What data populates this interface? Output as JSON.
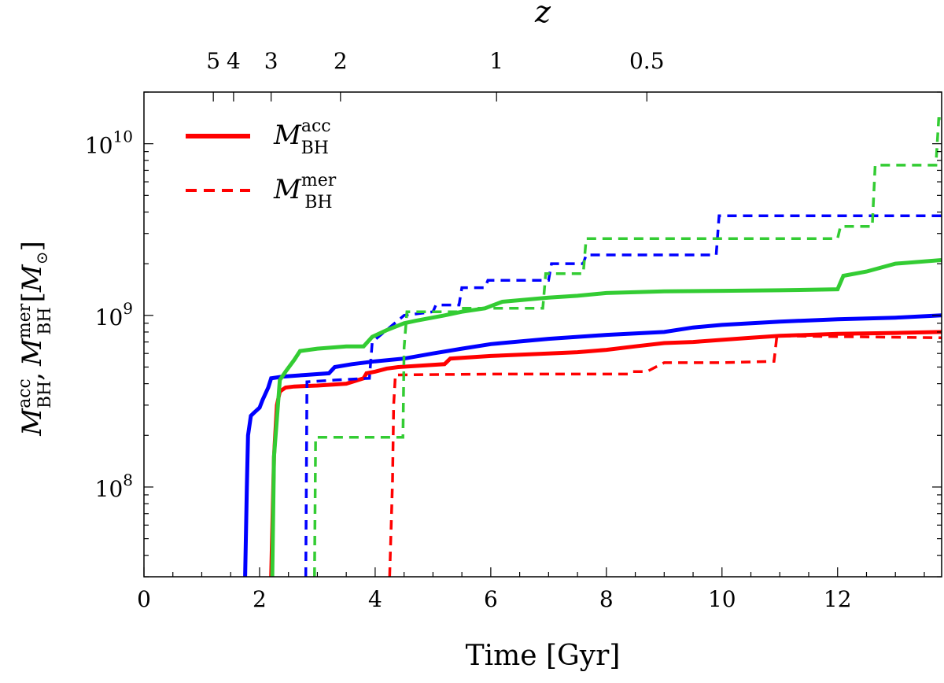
{
  "chart_data": {
    "type": "line",
    "title": "",
    "xlabel": "Time [Gyr]",
    "ylabel_parts": {
      "m": "M",
      "acc": "acc",
      "bh": "BH",
      "sep": ",",
      "mer": "mer",
      "unit_open": "[",
      "unit_close": "]"
    },
    "top_axis_label": "z",
    "xlim": [
      0,
      13.8
    ],
    "ylim": [
      30000000.0,
      20000000000.0
    ],
    "yscale": "log",
    "xticks": [
      0,
      2,
      4,
      6,
      8,
      10,
      12
    ],
    "xtick_labels": [
      "0",
      "2",
      "4",
      "6",
      "8",
      "10",
      "12"
    ],
    "yticks": [
      100000000.0,
      1000000000.0,
      10000000000.0
    ],
    "ytick_labels": [
      {
        "base": "10",
        "exp": "8"
      },
      {
        "base": "10",
        "exp": "9"
      },
      {
        "base": "10",
        "exp": "10"
      }
    ],
    "top_ticks": [
      {
        "t": 1.2,
        "label": "5"
      },
      {
        "t": 1.55,
        "label": "4"
      },
      {
        "t": 2.2,
        "label": "3"
      },
      {
        "t": 3.4,
        "label": "2"
      },
      {
        "t": 6.1,
        "label": "1"
      },
      {
        "t": 8.7,
        "label": "0.5"
      }
    ],
    "legend": {
      "position": "top-left",
      "entries": [
        {
          "label_m": "M",
          "sup": "acc",
          "sub": "BH",
          "color": "#ff0000",
          "style": "solid"
        },
        {
          "label_m": "M",
          "sup": "mer",
          "sub": "BH",
          "color": "#ff0000",
          "style": "dashed"
        }
      ]
    },
    "series": [
      {
        "name": "red-accreted",
        "color": "#ff0000",
        "style": "solid",
        "x": [
          2.2,
          2.25,
          2.3,
          2.35,
          2.45,
          2.6,
          3.0,
          3.5,
          3.8,
          3.85,
          4.0,
          4.2,
          4.4,
          4.8,
          5.2,
          5.3,
          6.0,
          7.0,
          7.5,
          8.0,
          8.5,
          9.0,
          9.5,
          10.0,
          10.5,
          11.0,
          12.0,
          13.0,
          13.8
        ],
        "y": [
          30000000.0,
          150000000.0,
          300000000.0,
          360000000.0,
          380000000.0,
          385000000.0,
          390000000.0,
          400000000.0,
          430000000.0,
          460000000.0,
          470000000.0,
          490000000.0,
          500000000.0,
          510000000.0,
          520000000.0,
          560000000.0,
          580000000.0,
          600000000.0,
          610000000.0,
          630000000.0,
          660000000.0,
          690000000.0,
          700000000.0,
          720000000.0,
          740000000.0,
          760000000.0,
          780000000.0,
          790000000.0,
          800000000.0
        ]
      },
      {
        "name": "red-merged",
        "color": "#ff0000",
        "style": "dashed",
        "x": [
          4.25,
          4.3,
          4.32,
          4.35,
          6.0,
          8.4,
          8.45,
          8.7,
          9.0,
          10.0,
          10.9,
          10.95,
          13.8
        ],
        "y": [
          30000000.0,
          110000000.0,
          300000000.0,
          450000000.0,
          455000000.0,
          455000000.0,
          470000000.0,
          470000000.0,
          530000000.0,
          530000000.0,
          540000000.0,
          760000000.0,
          740000000.0
        ]
      },
      {
        "name": "blue-accreted",
        "color": "#0000ff",
        "style": "solid",
        "x": [
          1.75,
          1.78,
          1.8,
          1.85,
          1.9,
          2.0,
          2.05,
          2.15,
          2.2,
          2.4,
          2.8,
          3.2,
          3.3,
          3.6,
          4.0,
          4.5,
          5.0,
          5.5,
          6.0,
          7.0,
          8.0,
          9.0,
          9.5,
          10.0,
          11.0,
          12.0,
          13.0,
          13.8
        ],
        "y": [
          30000000.0,
          100000000.0,
          200000000.0,
          260000000.0,
          270000000.0,
          290000000.0,
          320000000.0,
          380000000.0,
          430000000.0,
          440000000.0,
          450000000.0,
          460000000.0,
          500000000.0,
          520000000.0,
          540000000.0,
          560000000.0,
          600000000.0,
          640000000.0,
          680000000.0,
          730000000.0,
          770000000.0,
          800000000.0,
          850000000.0,
          880000000.0,
          920000000.0,
          950000000.0,
          970000000.0,
          1000000000.0
        ]
      },
      {
        "name": "blue-merged",
        "color": "#0000ff",
        "style": "dashed",
        "x": [
          2.8,
          2.82,
          3.3,
          3.9,
          3.95,
          4.5,
          5.0,
          5.05,
          5.45,
          5.5,
          5.9,
          5.95,
          7.0,
          7.05,
          7.6,
          7.65,
          9.9,
          9.95,
          13.8
        ],
        "y": [
          30000000.0,
          410000000.0,
          420000000.0,
          430000000.0,
          700000000.0,
          1000000000.0,
          1050000000.0,
          1150000000.0,
          1150000000.0,
          1450000000.0,
          1450000000.0,
          1600000000.0,
          1600000000.0,
          2000000000.0,
          2000000000.0,
          2250000000.0,
          2250000000.0,
          3800000000.0,
          3800000000.0
        ]
      },
      {
        "name": "green-accreted",
        "color": "#33cc33",
        "style": "solid",
        "x": [
          2.22,
          2.25,
          2.3,
          2.35,
          2.45,
          2.6,
          2.7,
          3.0,
          3.5,
          3.8,
          3.95,
          4.2,
          4.5,
          4.7,
          5.2,
          5.5,
          5.9,
          6.2,
          7.0,
          7.5,
          8.0,
          9.0,
          10.0,
          11.0,
          12.0,
          12.1,
          12.5,
          13.0,
          13.8
        ],
        "y": [
          30000000.0,
          150000000.0,
          250000000.0,
          420000000.0,
          470000000.0,
          550000000.0,
          620000000.0,
          640000000.0,
          660000000.0,
          660000000.0,
          750000000.0,
          820000000.0,
          900000000.0,
          930000000.0,
          1000000000.0,
          1050000000.0,
          1100000000.0,
          1200000000.0,
          1270000000.0,
          1300000000.0,
          1350000000.0,
          1380000000.0,
          1390000000.0,
          1400000000.0,
          1420000000.0,
          1700000000.0,
          1800000000.0,
          2000000000.0,
          2100000000.0
        ]
      },
      {
        "name": "green-merged",
        "color": "#33cc33",
        "style": "dashed",
        "x": [
          2.95,
          2.97,
          4.48,
          4.5,
          4.55,
          5.45,
          5.5,
          6.9,
          6.95,
          7.6,
          7.65,
          12.0,
          12.05,
          12.6,
          12.65,
          13.7,
          13.75,
          13.8
        ],
        "y": [
          30000000.0,
          195000000.0,
          195000000.0,
          650000000.0,
          1050000000.0,
          1050000000.0,
          1100000000.0,
          1100000000.0,
          1750000000.0,
          1750000000.0,
          2800000000.0,
          2800000000.0,
          3300000000.0,
          3300000000.0,
          7500000000.0,
          7500000000.0,
          14000000000.0,
          14000000000.0
        ]
      }
    ]
  }
}
